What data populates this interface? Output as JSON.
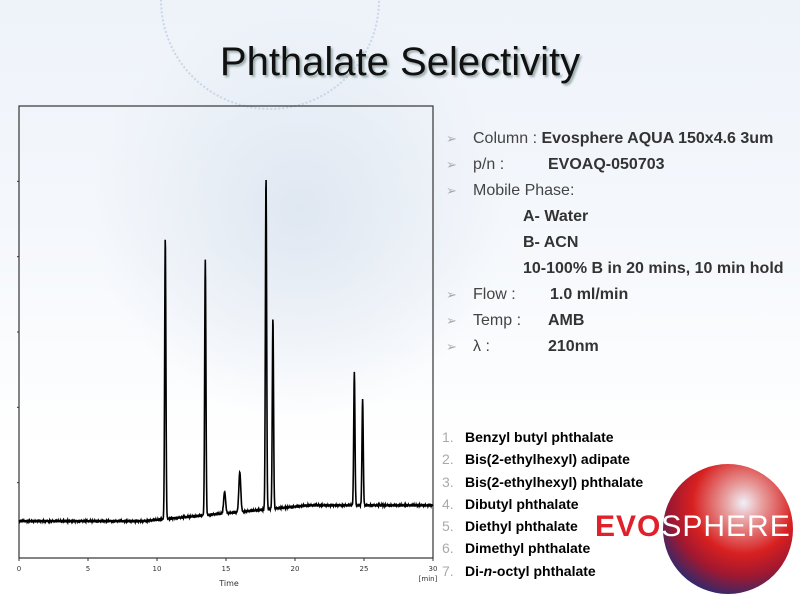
{
  "title": "Phthalate Selectivity",
  "specs": {
    "column_label": "Column :",
    "column_value": "Evosphere AQUA 150x4.6 3um",
    "pn_label": "p/n :",
    "pn_value": "EVOAQ-050703",
    "mobile_label": "Mobile Phase:",
    "mobile_a": "A- Water",
    "mobile_b": "B- ACN",
    "gradient": "10-100% B in 20 mins, 10 min hold",
    "flow_label": "Flow :",
    "flow_value": "1.0 ml/min",
    "temp_label": "Temp :",
    "temp_value": "AMB",
    "lambda_label": "λ :",
    "lambda_value": "210nm",
    "bullet_icon": "arrowhead-bullet"
  },
  "compounds": [
    {
      "num": "1.",
      "name": "Benzyl butyl phthalate"
    },
    {
      "num": "2.",
      "name": "Bis(2-ethylhexyl) adipate"
    },
    {
      "num": "3.",
      "name": "Bis(2-ethylhexyl) phthalate"
    },
    {
      "num": "4.",
      "name": "Dibutyl phthalate"
    },
    {
      "num": "5.",
      "name": "Diethyl phthalate"
    },
    {
      "num": "6.",
      "name": "Dimethyl phthalate"
    },
    {
      "num": "7.",
      "pre": "Di-",
      "ital": "n",
      "post": "-octyl phthalate"
    }
  ],
  "logo": {
    "part1": "EVO",
    "part2": "SPHERE",
    "colors": {
      "red": "#e0202a",
      "navy": "#1e2a6a"
    }
  },
  "chart_data": {
    "type": "line",
    "xlabel": "Time",
    "xunit": "[min]",
    "xlim": [
      0,
      30
    ],
    "xticks": [
      0,
      5,
      10,
      15,
      20,
      25,
      30
    ],
    "ylim": [
      0,
      6
    ],
    "yticks_unlabeled": [
      1,
      2,
      3,
      4,
      5
    ],
    "baseline": {
      "start": 0.49,
      "end": 0.7
    },
    "peaks": [
      {
        "rt": 10.6,
        "height": 4.26
      },
      {
        "rt": 13.5,
        "height": 3.96
      },
      {
        "rt": 14.9,
        "height": 0.88
      },
      {
        "rt": 16.0,
        "height": 1.14
      },
      {
        "rt": 17.9,
        "height": 5.06
      },
      {
        "rt": 18.4,
        "height": 3.19
      },
      {
        "rt": 24.3,
        "height": 2.47
      },
      {
        "rt": 24.9,
        "height": 2.11
      }
    ],
    "line_color": "#000000",
    "grid": false
  }
}
